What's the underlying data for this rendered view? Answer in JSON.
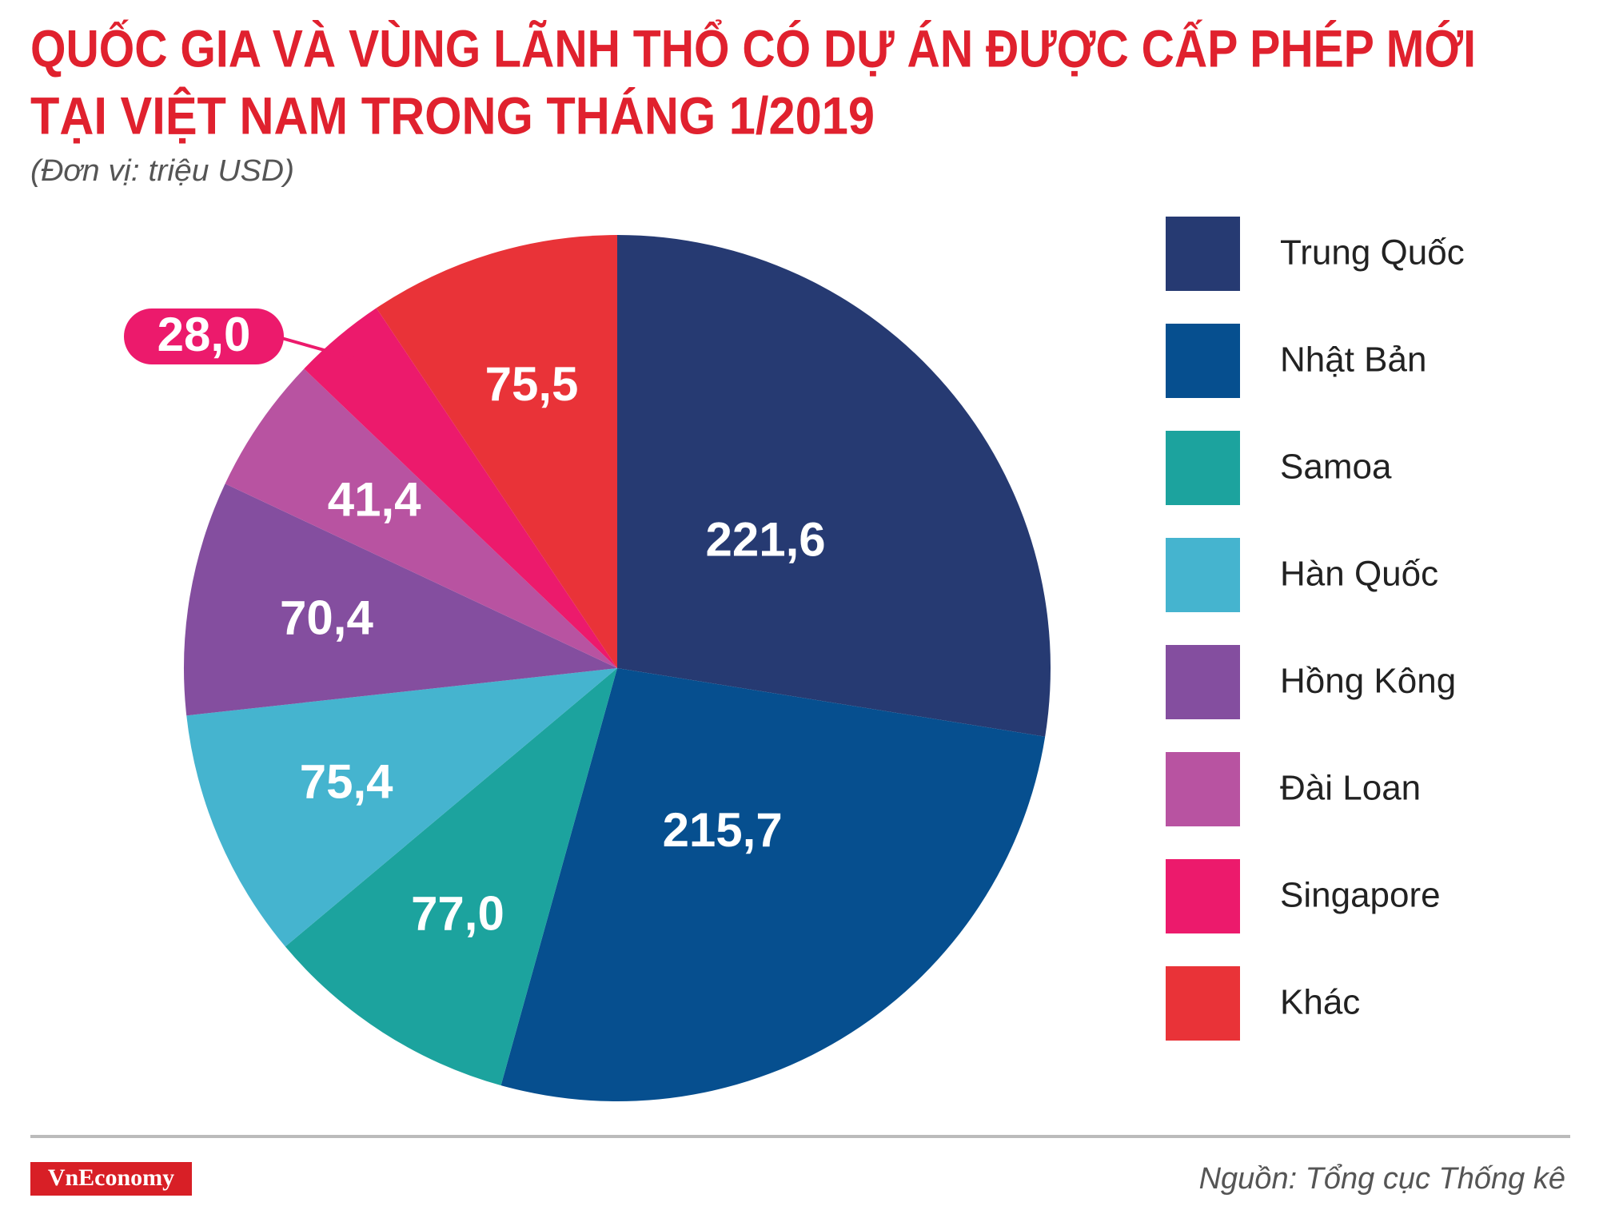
{
  "chart_data": {
    "type": "pie",
    "title": [
      "QUỐC GIA VÀ VÙNG LÃNH THỔ CÓ DỰ ÁN ĐƯỢC CẤP PHÉP MỚI",
      "TẠI VIỆT NAM TRONG THÁNG 1/2019"
    ],
    "subtitle": "(Đơn vị: triệu USD)",
    "categories": [
      "Trung Quốc",
      "Nhật Bản",
      "Samoa",
      "Hàn Quốc",
      "Hồng Kông",
      "Đài Loan",
      "Singapore",
      "Khác"
    ],
    "values": [
      221.6,
      215.7,
      77.0,
      75.4,
      70.4,
      41.4,
      28.0,
      75.5
    ],
    "value_labels": [
      "221,6",
      "215,7",
      "77,0",
      "75,4",
      "70,4",
      "41,4",
      "28,0",
      "75,5"
    ],
    "colors": [
      "#263a72",
      "#064f8f",
      "#1ca39e",
      "#45b4cf",
      "#844e9f",
      "#b853a1",
      "#ec1a6c",
      "#e93338"
    ],
    "legend": "right",
    "source": "Nguồn: Tổng cục Thống kê",
    "brand": "VnEconomy"
  }
}
